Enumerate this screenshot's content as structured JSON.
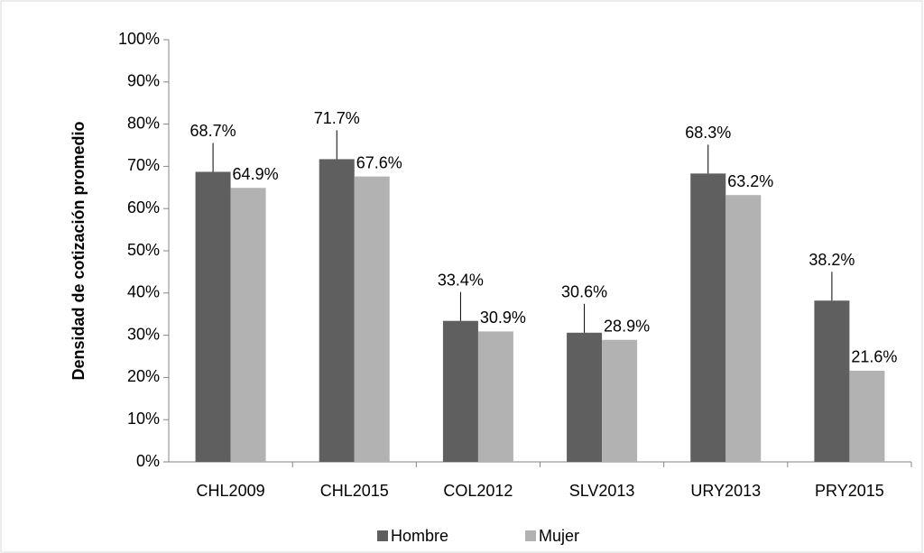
{
  "chart_data": {
    "type": "bar",
    "y_axis_label": "Densidad de cotización promedio",
    "categories": [
      "CHL2009",
      "CHL2015",
      "COL2012",
      "SLV2013",
      "URY2013",
      "PRY2015"
    ],
    "series": [
      {
        "name": "Hombre",
        "color": "#5f5f5f",
        "values": [
          68.7,
          71.7,
          33.4,
          30.6,
          68.3,
          38.2
        ],
        "value_labels": [
          "68.7%",
          "71.7%",
          "33.4%",
          "30.6%",
          "68.3%",
          "38.2%"
        ]
      },
      {
        "name": "Mujer",
        "color": "#b2b2b2",
        "values": [
          64.9,
          67.6,
          30.9,
          28.9,
          63.2,
          21.6
        ],
        "value_labels": [
          "64.9%",
          "67.6%",
          "30.9%",
          "28.9%",
          "63.2%",
          "21.6%"
        ]
      }
    ],
    "ylim": [
      0,
      100
    ],
    "yticks": [
      {
        "value": 0,
        "label": "0%"
      },
      {
        "value": 10,
        "label": "10%"
      },
      {
        "value": 20,
        "label": "20%"
      },
      {
        "value": 30,
        "label": "30%"
      },
      {
        "value": 40,
        "label": "40%"
      },
      {
        "value": 50,
        "label": "50%"
      },
      {
        "value": 60,
        "label": "60%"
      },
      {
        "value": 70,
        "label": "70%"
      },
      {
        "value": 80,
        "label": "80%"
      },
      {
        "value": 90,
        "label": "90%"
      },
      {
        "value": 100,
        "label": "100%"
      }
    ],
    "legend": "bottom"
  }
}
